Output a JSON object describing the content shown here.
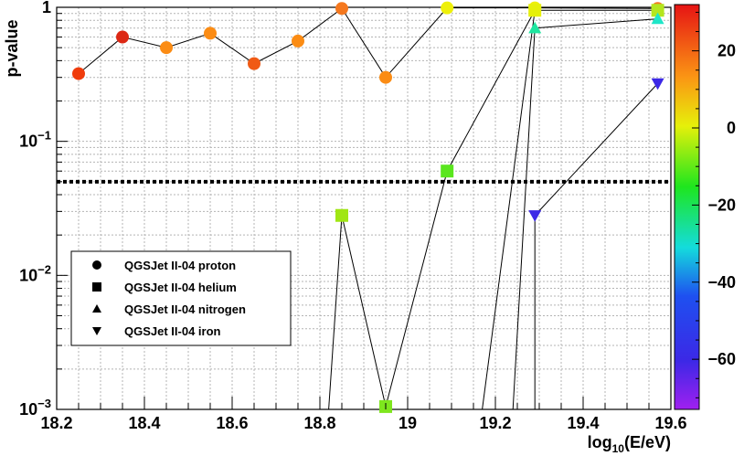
{
  "chart_data": {
    "type": "scatter",
    "title": "",
    "xlabel": "log10(E/eV)",
    "ylabel": "p-value",
    "xlim": [
      18.2,
      19.6
    ],
    "ylim": [
      0.001,
      1
    ],
    "yscale": "log",
    "grid": true,
    "x_ticks": [
      "18.2",
      "18.4",
      "18.6",
      "18.8",
      "19",
      "19.2",
      "19.4",
      "19.6"
    ],
    "y_ticks": [
      {
        "base": "10",
        "exp": "−3",
        "value": 0.001
      },
      {
        "base": "10",
        "exp": "−2",
        "value": 0.01
      },
      {
        "base": "10",
        "exp": "−1",
        "value": 0.1
      },
      {
        "base": "1",
        "exp": "",
        "value": 1
      }
    ],
    "threshold": 0.05,
    "colorbar": {
      "range": [
        -73,
        32
      ],
      "ticks": [
        "20",
        "0",
        "−20",
        "−40",
        "−60"
      ],
      "tick_values": [
        20,
        0,
        -20,
        -40,
        -60
      ]
    },
    "legend_position": "bottom-left",
    "series": [
      {
        "name": "QGSJet II-04 proton",
        "marker": "circle",
        "points": [
          {
            "x": 18.25,
            "y": 0.32,
            "c": "#f03c0c"
          },
          {
            "x": 18.35,
            "y": 0.6,
            "c": "#dc2814"
          },
          {
            "x": 18.45,
            "y": 0.5,
            "c": "#fb8c14"
          },
          {
            "x": 18.55,
            "y": 0.64,
            "c": "#fb8c14"
          },
          {
            "x": 18.65,
            "y": 0.38,
            "c": "#f05a14"
          },
          {
            "x": 18.75,
            "y": 0.56,
            "c": "#fb8c14"
          },
          {
            "x": 18.85,
            "y": 0.98,
            "c": "#f5781e"
          },
          {
            "x": 18.95,
            "y": 0.3,
            "c": "#fb8c14"
          },
          {
            "x": 19.09,
            "y": 0.99,
            "c": "#eef00a"
          },
          {
            "x": 19.29,
            "y": 0.99,
            "c": "#eef00a"
          },
          {
            "x": 19.57,
            "y": 0.98,
            "c": "#f5781e"
          }
        ]
      },
      {
        "name": "QGSJet II-04 helium",
        "marker": "square",
        "points": [
          {
            "x": 18.85,
            "y": 0.028,
            "c": "#a0e614"
          },
          {
            "x": 18.95,
            "y": 0.00105,
            "c": "#7ee61e"
          },
          {
            "x": 19.09,
            "y": 0.06,
            "c": "#5ae61e"
          },
          {
            "x": 19.29,
            "y": 0.95,
            "c": "#e6f00a"
          },
          {
            "x": 19.57,
            "y": 0.95,
            "c": "#b4e61e"
          }
        ]
      },
      {
        "name": "QGSJet II-04 nitrogen",
        "marker": "triangle-up",
        "points": [
          {
            "x": 19.29,
            "y": 0.7,
            "c": "#1ee6a0"
          },
          {
            "x": 19.57,
            "y": 0.82,
            "c": "#1ee6c8"
          }
        ]
      },
      {
        "name": "QGSJet II-04 iron",
        "marker": "triangle-down",
        "points": [
          {
            "x": 19.29,
            "y": 0.028,
            "c": "#3c28e6"
          },
          {
            "x": 19.57,
            "y": 0.27,
            "c": "#3c28e6"
          }
        ]
      }
    ]
  }
}
